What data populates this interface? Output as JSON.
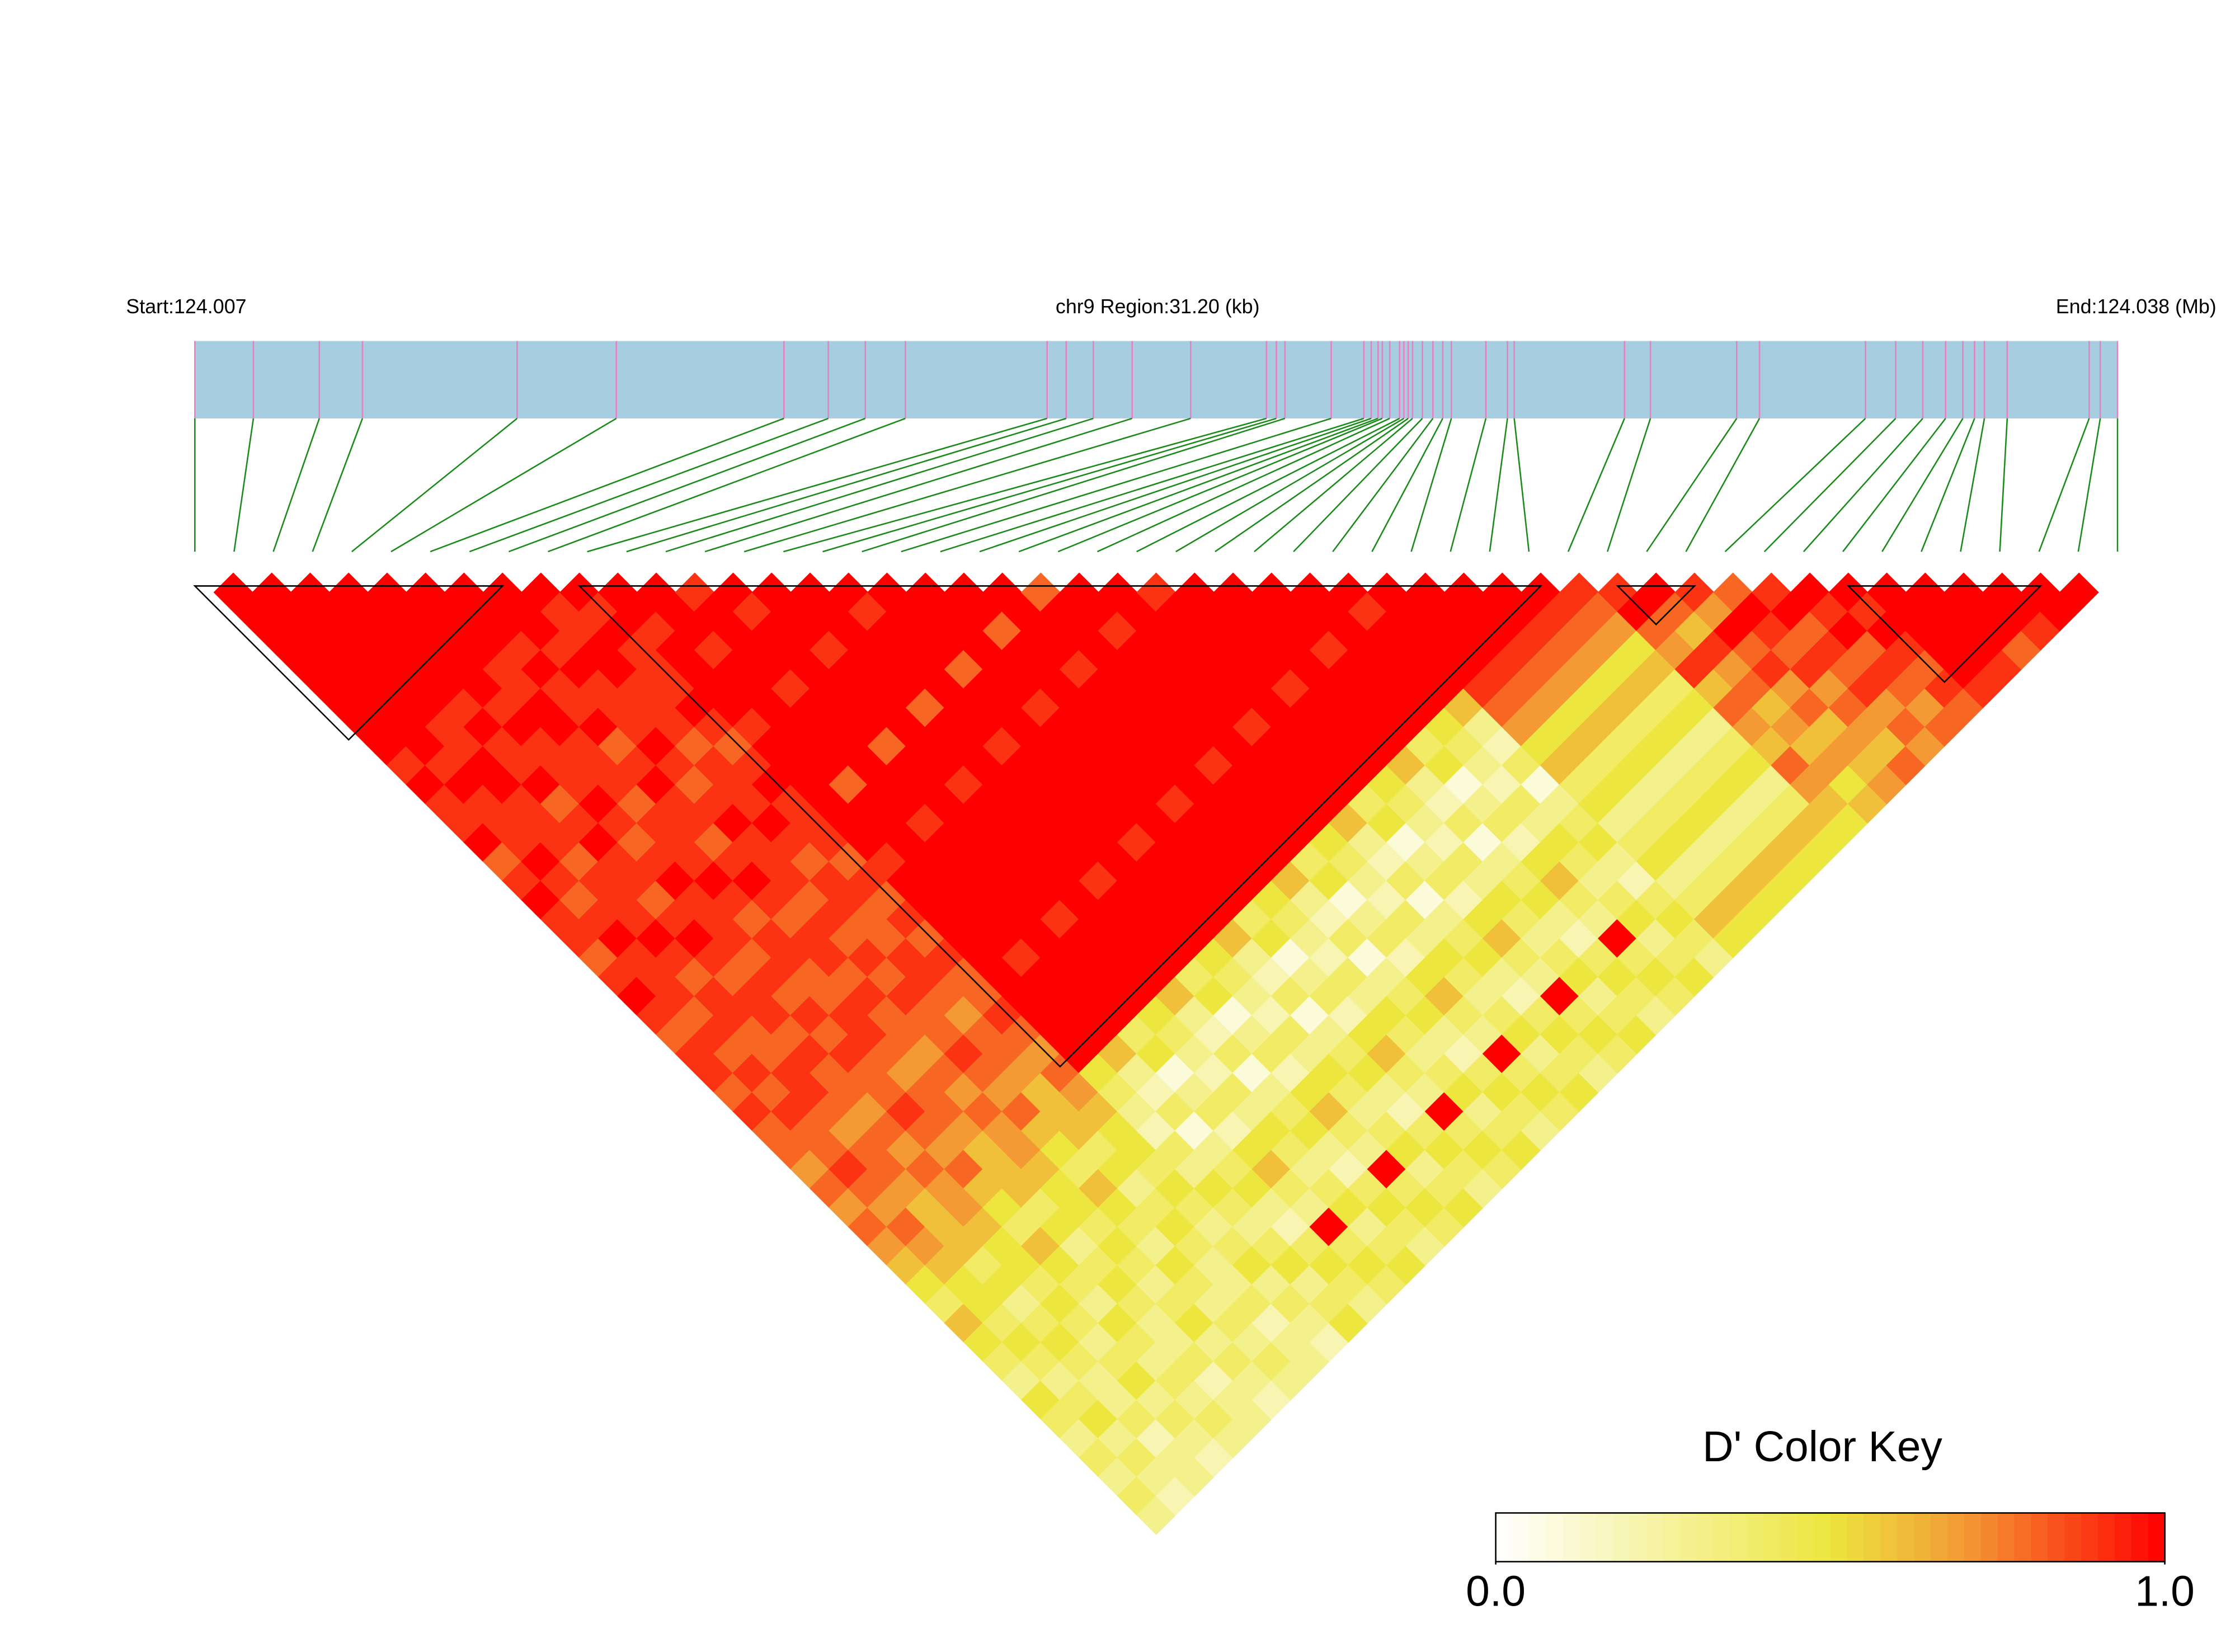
{
  "chart_data": {
    "type": "ld_heatmap",
    "start_label": "Start:124.007",
    "region_label": "chr9 Region:31.20 (kb)",
    "end_label": "End:124.038 (Mb)",
    "colorbar_title": "D' Color Key",
    "colorbar_ticks": [
      {
        "value": 0,
        "label": "0.0"
      },
      {
        "value": 1,
        "label": "1.0"
      }
    ],
    "colorscale": [
      [
        0,
        "#ffffff"
      ],
      [
        0.5,
        "#ede63f"
      ],
      [
        0.7,
        "#f39a35"
      ],
      [
        1,
        "#ff0000"
      ]
    ],
    "track_color": "#a6cde0",
    "snp_line_color": "#e87fc4",
    "connector_color": "#1a8a1a",
    "block_outline_color": "#000000",
    "xlim": [
      0,
      31.2
    ],
    "positions_kb": [
      0,
      0.95,
      2.02,
      2.72,
      5.23,
      6.84,
      9.56,
      10.28,
      10.88,
      11.53,
      13.83,
      14.14,
      14.58,
      15.21,
      16.16,
      17.39,
      17.55,
      17.69,
      18.44,
      18.97,
      19.09,
      19.2,
      19.27,
      19.39,
      19.55,
      19.62,
      19.69,
      19.76,
      19.92,
      20.09,
      20.25,
      20.39,
      20.95,
      21.3,
      21.41,
      23.2,
      23.62,
      25.02,
      25.39,
      27.11,
      27.6,
      28.04,
      28.41,
      28.69,
      28.88,
      29.04,
      29.41,
      30.74,
      30.92,
      31.2
    ],
    "blocks": [
      [
        0,
        7
      ],
      [
        10,
        34
      ],
      [
        37,
        38
      ],
      [
        43,
        47
      ]
    ],
    "dprime": [
      [
        1,
        1,
        1,
        1,
        1,
        1,
        1,
        1,
        1,
        0.9,
        1,
        0.9,
        0.9,
        1,
        0.8,
        0.9,
        1,
        0.9,
        0.9,
        0.8,
        0.9,
        1,
        0.9,
        0.8,
        0.9,
        0.9,
        0.8,
        0.9,
        0.8,
        0.8,
        0.7,
        0.8,
        0.7,
        0.8,
        0.7,
        0.6,
        0.5,
        0.4,
        0.6,
        0.5,
        0.4,
        0.3,
        0.5,
        0.4,
        0.3,
        0.4,
        0.3,
        0.4,
        0.3
      ],
      [
        1,
        1,
        1,
        1,
        1,
        1,
        1,
        1,
        1,
        0.9,
        1,
        0.9,
        0.9,
        0.9,
        1,
        0.9,
        0.8,
        0.9,
        1,
        0.9,
        0.9,
        0.9,
        0.8,
        0.9,
        0.8,
        0.9,
        0.8,
        0.9,
        0.8,
        0.8,
        0.9,
        0.8,
        0.7,
        0.8,
        0.7,
        0.6,
        0.5,
        0.5,
        0.4,
        0.5,
        0.4,
        0.3,
        0.4,
        0.5,
        0.3,
        0.4,
        0.3,
        0.2
      ],
      [
        1,
        1,
        1,
        1,
        1,
        1,
        1,
        0.9,
        0.9,
        1,
        1,
        0.9,
        0.9,
        0.9,
        0.8,
        0.9,
        0.9,
        0.9,
        1,
        0.9,
        0.8,
        0.9,
        0.9,
        0.8,
        0.8,
        0.9,
        0.9,
        0.8,
        0.7,
        0.8,
        0.8,
        0.7,
        0.6,
        0.6,
        0.6,
        0.4,
        0.5,
        0.3,
        0.4,
        0.5,
        0.4,
        0.3,
        0.3,
        0.4,
        0.2,
        0.3,
        0.3
      ],
      [
        1,
        1,
        1,
        1,
        1,
        1,
        0.9,
        1,
        0.9,
        0.9,
        1,
        0.8,
        0.9,
        1,
        0.9,
        0.9,
        0.8,
        0.9,
        1,
        0.9,
        0.8,
        0.9,
        0.9,
        0.8,
        0.9,
        0.8,
        0.8,
        0.7,
        0.8,
        0.7,
        0.8,
        0.7,
        0.7,
        0.6,
        0.5,
        0.5,
        0.4,
        0.5,
        0.4,
        0.3,
        0.4,
        0.5,
        0.3,
        0.4,
        0.3,
        0.2
      ],
      [
        1,
        1,
        1,
        1,
        1,
        1,
        0.9,
        1,
        0.9,
        0.9,
        0.9,
        1,
        0.9,
        0.8,
        0.9,
        1,
        0.9,
        0.9,
        0.9,
        0.8,
        0.9,
        0.8,
        0.9,
        0.8,
        0.9,
        0.8,
        0.8,
        0.9,
        0.8,
        0.7,
        0.8,
        0.6,
        0.5,
        0.4,
        0.6,
        0.5,
        0.4,
        0.3,
        0.5,
        0.4,
        0.3,
        0.4,
        0.3,
        0.4,
        0.3
      ],
      [
        1,
        1,
        1,
        1,
        0.9,
        0.9,
        1,
        1,
        0.9,
        0.9,
        0.9,
        0.8,
        0.9,
        0.9,
        0.9,
        1,
        0.9,
        0.8,
        0.9,
        0.9,
        0.8,
        0.8,
        0.9,
        0.9,
        0.8,
        0.7,
        0.8,
        0.8,
        0.7,
        0.6,
        0.6,
        0.6,
        0.4,
        0.5,
        0.3,
        0.4,
        0.5,
        0.4,
        0.3,
        0.3,
        0.4,
        0.2,
        0.3,
        0.3
      ],
      [
        1,
        1,
        1,
        0.9,
        1,
        0.9,
        0.9,
        1,
        0.8,
        0.9,
        1,
        0.9,
        0.9,
        0.8,
        0.9,
        1,
        0.9,
        0.8,
        0.9,
        0.9,
        0.8,
        0.9,
        0.8,
        0.8,
        0.7,
        0.8,
        0.7,
        0.8,
        0.7,
        0.7,
        0.6,
        0.5,
        0.5,
        0.4,
        0.5,
        0.4,
        0.3,
        0.4,
        0.5,
        0.3,
        0.4,
        0.3,
        0.2
      ],
      [
        1,
        1,
        1,
        0.9,
        1,
        0.9,
        0.9,
        0.9,
        1,
        0.9,
        0.8,
        0.9,
        1,
        0.9,
        0.9,
        0.9,
        0.8,
        0.9,
        0.8,
        0.9,
        0.8,
        0.9,
        0.8,
        0.8,
        0.9,
        0.8,
        0.7,
        0.8,
        0.6,
        0.5,
        0.4,
        0.6,
        0.5,
        0.4,
        0.3,
        0.5,
        0.4,
        0.3,
        0.4,
        0.3,
        0.4,
        0.3
      ],
      [
        1,
        0.9,
        0.9,
        1,
        1,
        0.9,
        0.9,
        0.9,
        0.8,
        0.9,
        0.9,
        0.9,
        1,
        0.9,
        0.8,
        0.9,
        0.9,
        0.8,
        0.8,
        0.9,
        0.9,
        0.8,
        0.7,
        0.8,
        0.8,
        0.7,
        0.6,
        0.6,
        0.6,
        0.4,
        0.5,
        0.3,
        0.4,
        0.5,
        0.4,
        0.3,
        0.3,
        0.4,
        0.2,
        0.3,
        0.3
      ],
      [
        1,
        0.9,
        1,
        0.9,
        0.9,
        0.9,
        1,
        0.9,
        0.8,
        0.9,
        1,
        0.9,
        0.9,
        0.9,
        0.8,
        0.9,
        0.8,
        0.9,
        0.8,
        0.9,
        0.8,
        0.8,
        0.9,
        0.8,
        0.7,
        0.8,
        0.7,
        0.6,
        0.5,
        0.5,
        0.4,
        0.5,
        0.4,
        0.3,
        0.4,
        0.5,
        0.3,
        0.4,
        0.3,
        0.2
      ],
      [
        1,
        1,
        0.9,
        1,
        1,
        1,
        1,
        0.9,
        1,
        1,
        1,
        1,
        1,
        1,
        0.9,
        1,
        1,
        1,
        1,
        1,
        1,
        1,
        1,
        1,
        1,
        0.5,
        0.4,
        0.3,
        0.2,
        0.4,
        0.3,
        0.5,
        0.4,
        0.3,
        0.4,
        0.5,
        0.3,
        0.4,
        0.5
      ],
      [
        1,
        1,
        1,
        0.9,
        1,
        1,
        1,
        1,
        1,
        1,
        0.8,
        1,
        1,
        1,
        1,
        1,
        1,
        1,
        1,
        0.9,
        1,
        1,
        1,
        1,
        0.6,
        0.3,
        0.2,
        0.4,
        0.1,
        0.3,
        0.4,
        0.5,
        0.3,
        0.2,
        0.4,
        0.5,
        0.4,
        0.3
      ],
      [
        0.9,
        1,
        1,
        1,
        1,
        0.9,
        1,
        1,
        1,
        1,
        1,
        1,
        0.9,
        1,
        1,
        1,
        1,
        1,
        1,
        1,
        1,
        1,
        1,
        0.4,
        0.5,
        0.1,
        0.3,
        0.4,
        0.2,
        0.5,
        0.6,
        0.4,
        0.3,
        1,
        0.4,
        0.5,
        0.4
      ],
      [
        1,
        0.9,
        1,
        1,
        1,
        1,
        1,
        1,
        0.8,
        1,
        1,
        1,
        1,
        1,
        1,
        1,
        1,
        0.9,
        1,
        1,
        1,
        1,
        0.5,
        0.4,
        0.3,
        0.2,
        0.4,
        0.3,
        0.5,
        0.4,
        0.3,
        0.4,
        0.5,
        0.3,
        0.4,
        0.5
      ],
      [
        1,
        1,
        1,
        0.9,
        1,
        1,
        1,
        1,
        1,
        1,
        0.9,
        1,
        1,
        1,
        1,
        1,
        1,
        1,
        1,
        1,
        1,
        0.6,
        0.3,
        0.2,
        0.4,
        0.1,
        0.3,
        0.4,
        0.5,
        0.3,
        0.2,
        0.4,
        0.5,
        0.4,
        0.3
      ],
      [
        1,
        1,
        1,
        1,
        1,
        1,
        0.8,
        1,
        1,
        1,
        1,
        1,
        1,
        1,
        1,
        0.9,
        1,
        1,
        1,
        1,
        0.4,
        0.5,
        0.1,
        0.3,
        0.4,
        0.2,
        0.5,
        0.6,
        0.4,
        0.3,
        1,
        0.4,
        0.5,
        0.4
      ],
      [
        1,
        0.9,
        1,
        1,
        1,
        1,
        1,
        1,
        0.9,
        1,
        1,
        1,
        1,
        1,
        1,
        1,
        1,
        1,
        1,
        0.5,
        0.4,
        0.3,
        0.2,
        0.4,
        0.3,
        0.5,
        0.4,
        0.3,
        0.4,
        0.5,
        0.3,
        0.4,
        0.5
      ],
      [
        1,
        1,
        1,
        1,
        0.8,
        1,
        1,
        1,
        1,
        1,
        1,
        1,
        1,
        0.9,
        1,
        1,
        1,
        1,
        0.6,
        0.3,
        0.2,
        0.4,
        0.1,
        0.3,
        0.4,
        0.5,
        0.3,
        0.2,
        0.4,
        0.5,
        0.4,
        0.3
      ],
      [
        1,
        1,
        1,
        1,
        1,
        1,
        0.9,
        1,
        1,
        1,
        1,
        1,
        1,
        1,
        1,
        1,
        1,
        0.4,
        0.5,
        0.1,
        0.3,
        0.4,
        0.2,
        0.5,
        0.6,
        0.4,
        0.3,
        1,
        0.4,
        0.5,
        0.4
      ],
      [
        1,
        1,
        0.8,
        1,
        1,
        1,
        1,
        1,
        1,
        1,
        1,
        0.9,
        1,
        1,
        1,
        1,
        0.5,
        0.4,
        0.3,
        0.2,
        0.4,
        0.3,
        0.5,
        0.4,
        0.3,
        0.4,
        0.5,
        0.3,
        0.4,
        0.5
      ],
      [
        1,
        1,
        1,
        1,
        0.9,
        1,
        1,
        1,
        1,
        1,
        1,
        1,
        1,
        1,
        1,
        0.6,
        0.3,
        0.2,
        0.4,
        0.1,
        0.3,
        0.4,
        0.5,
        0.3,
        0.2,
        0.4,
        0.5,
        0.4,
        0.3
      ],
      [
        0.8,
        1,
        1,
        1,
        1,
        1,
        1,
        1,
        1,
        0.9,
        1,
        1,
        1,
        1,
        0.4,
        0.5,
        0.1,
        0.3,
        0.4,
        0.2,
        0.5,
        0.6,
        0.4,
        0.3,
        1,
        0.4,
        0.5,
        0.4
      ],
      [
        1,
        1,
        0.9,
        1,
        1,
        1,
        1,
        1,
        1,
        1,
        1,
        1,
        1,
        0.5,
        0.4,
        0.3,
        0.2,
        0.4,
        0.3,
        0.5,
        0.4,
        0.3,
        0.4,
        0.5,
        0.3,
        0.4,
        0.5
      ],
      [
        1,
        1,
        1,
        1,
        1,
        1,
        1,
        0.9,
        1,
        1,
        1,
        1,
        0.6,
        0.3,
        0.2,
        0.4,
        0.1,
        0.3,
        0.4,
        0.5,
        0.3,
        0.2,
        0.4,
        0.5,
        0.4,
        0.3
      ],
      [
        0.9,
        1,
        1,
        1,
        1,
        1,
        1,
        1,
        1,
        1,
        1,
        0.4,
        0.5,
        0.1,
        0.3,
        0.4,
        0.2,
        0.5,
        0.6,
        0.4,
        0.3,
        1,
        0.4,
        0.5,
        0.4
      ],
      [
        1,
        1,
        1,
        1,
        1,
        0.9,
        1,
        1,
        1,
        1,
        0.5,
        0.4,
        0.3,
        0.2,
        0.4,
        0.3,
        0.5,
        0.4,
        0.3,
        0.4,
        0.5,
        0.3,
        0.4,
        0.5
      ],
      [
        1,
        1,
        1,
        1,
        1,
        1,
        1,
        1,
        1,
        0.6,
        0.3,
        0.2,
        0.4,
        0.1,
        0.3,
        0.4,
        0.5,
        0.3,
        0.2,
        0.4,
        0.5,
        0.4,
        0.3
      ],
      [
        1,
        1,
        1,
        0.9,
        1,
        1,
        1,
        1,
        0.4,
        0.5,
        0.1,
        0.3,
        0.4,
        0.2,
        0.5,
        0.6,
        0.4,
        0.3,
        1,
        0.4,
        0.5,
        0.4
      ],
      [
        1,
        1,
        1,
        1,
        1,
        1,
        1,
        0.5,
        0.4,
        0.3,
        0.2,
        0.4,
        0.3,
        0.5,
        0.4,
        0.3,
        0.4,
        0.5,
        0.3,
        0.4,
        0.5
      ],
      [
        1,
        0.9,
        1,
        1,
        1,
        1,
        0.6,
        0.3,
        0.2,
        0.4,
        0.1,
        0.3,
        0.4,
        0.5,
        0.3,
        0.2,
        0.4,
        0.5,
        0.4,
        0.3
      ],
      [
        1,
        1,
        1,
        1,
        1,
        0.9,
        0.8,
        0.7,
        0.5,
        0.6,
        0.4,
        0.5,
        0.3,
        0.4,
        0.5,
        0.3,
        0.4,
        0.6,
        0.5
      ],
      [
        1,
        1,
        1,
        1,
        0.9,
        0.8,
        0.7,
        0.5,
        0.6,
        0.4,
        0.5,
        0.3,
        0.4,
        0.5,
        0.3,
        0.4,
        0.6,
        0.5
      ],
      [
        1,
        1,
        1,
        0.9,
        0.8,
        0.7,
        0.5,
        0.6,
        0.4,
        0.5,
        0.3,
        0.4,
        0.5,
        0.3,
        0.4,
        0.6,
        0.5
      ],
      [
        1,
        1,
        0.9,
        0.8,
        0.7,
        0.5,
        0.6,
        0.4,
        0.5,
        0.3,
        0.4,
        0.5,
        0.3,
        0.4,
        0.6,
        0.5
      ],
      [
        1,
        0.9,
        0.8,
        0.7,
        0.5,
        0.6,
        0.4,
        0.5,
        0.3,
        0.4,
        0.5,
        0.3,
        0.4,
        0.6,
        0.5
      ],
      [
        0.9,
        0.8,
        0.7,
        0.5,
        0.6,
        0.4,
        0.5,
        0.3,
        0.4,
        0.5,
        0.3,
        0.4,
        0.6,
        0.5
      ],
      [
        0.9,
        1,
        0.8,
        0.7,
        0.9,
        0.6,
        0.8,
        0.7,
        0.6,
        0.8,
        0.7,
        0.6,
        0.5
      ],
      [
        1,
        0.8,
        0.6,
        0.9,
        0.7,
        0.8,
        0.6,
        0.7,
        0.6,
        0.7,
        0.5,
        0.6
      ],
      [
        0.9,
        0.7,
        1,
        0.8,
        0.9,
        0.7,
        0.8,
        0.6,
        0.7,
        0.6,
        0.7
      ],
      [
        0.8,
        1,
        0.9,
        0.8,
        0.9,
        0.7,
        0.8,
        0.7,
        0.6,
        0.8
      ],
      [
        0.9,
        1,
        0.8,
        0.9,
        0.8,
        0.9,
        0.7,
        0.8,
        0.7
      ],
      [
        1,
        0.9,
        1,
        0.8,
        0.9,
        0.8,
        0.7,
        0.8
      ],
      [
        1,
        0.9,
        1,
        0.9,
        0.8,
        0.9,
        0.8
      ],
      [
        1,
        1,
        1,
        1,
        1,
        0.9
      ],
      [
        1,
        1,
        1,
        1,
        0.9
      ],
      [
        1,
        1,
        1,
        0.8
      ],
      [
        1,
        1,
        0.9
      ],
      [
        1,
        1
      ],
      [
        1
      ]
    ]
  }
}
